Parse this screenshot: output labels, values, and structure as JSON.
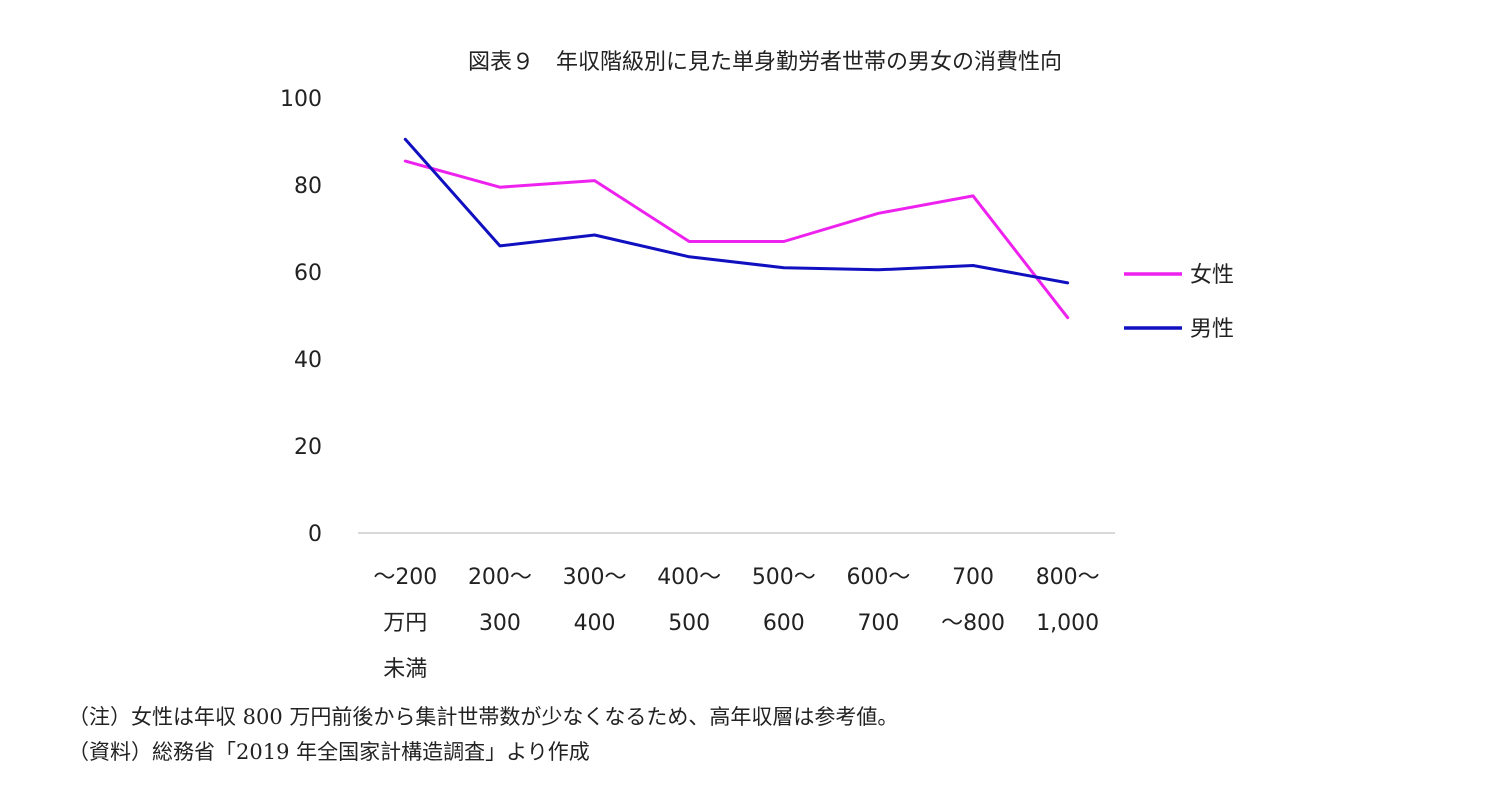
{
  "chart_data": {
    "type": "line",
    "title": "図表９　年収階級別に見た単身勤労者世帯の男女の消費性向",
    "categories": [
      [
        "～200",
        "万円",
        "未満"
      ],
      [
        "200～",
        "300"
      ],
      [
        "300～",
        "400"
      ],
      [
        "400～",
        "500"
      ],
      [
        "500～",
        "600"
      ],
      [
        "600～",
        "700"
      ],
      [
        "700",
        "～800"
      ],
      [
        "800～",
        "1,000"
      ]
    ],
    "series": [
      {
        "name": "女性",
        "color": "#ee22ee",
        "values": [
          85.5,
          79.5,
          81.0,
          67.0,
          67.0,
          73.5,
          77.5,
          49.5
        ]
      },
      {
        "name": "男性",
        "color": "#1010c0",
        "values": [
          90.5,
          66.0,
          68.5,
          63.5,
          61.0,
          60.5,
          61.5,
          57.5
        ]
      }
    ],
    "ylim": [
      0,
      100
    ],
    "yticks": [
      0,
      20,
      40,
      60,
      80,
      100
    ],
    "grid": false,
    "legend_position": "right"
  },
  "notes": [
    "（注）女性は年収 800 万円前後から集計世帯数が少なくなるため、高年収層は参考値。",
    "（資料）総務省「2019 年全国家計構造調査」より作成"
  ]
}
